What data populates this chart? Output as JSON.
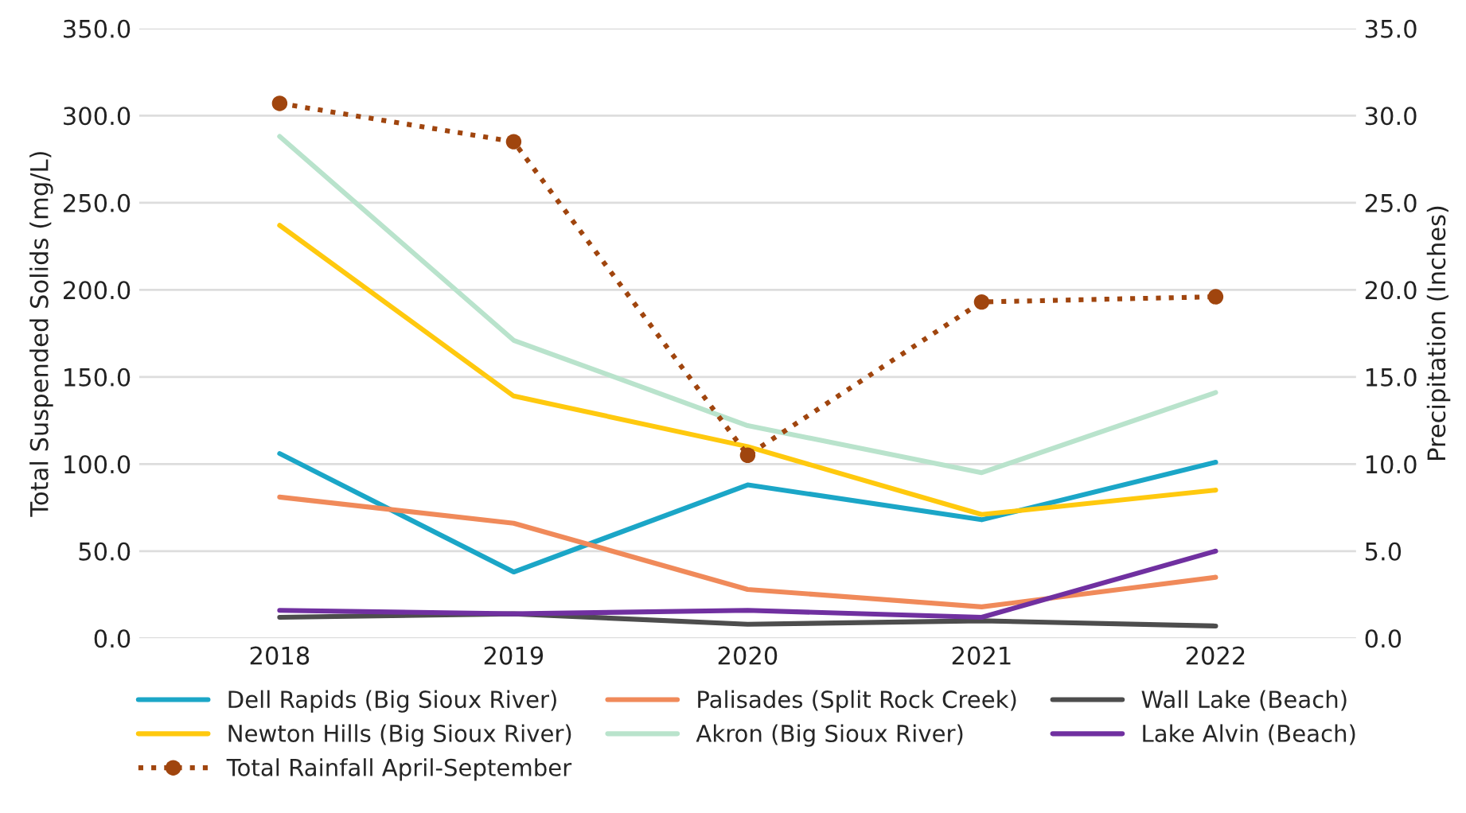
{
  "chart_data": {
    "type": "line",
    "ylabel": "Total Suspended Solids (mg/L)",
    "y2label": "Precipitation (Inches)",
    "categories": [
      "2018",
      "2019",
      "2020",
      "2021",
      "2022"
    ],
    "ylim": [
      0,
      350
    ],
    "yticks": [
      {
        "value": 0,
        "label": "0.0"
      },
      {
        "value": 50,
        "label": "50.0"
      },
      {
        "value": 100,
        "label": "100.0"
      },
      {
        "value": 150,
        "label": "150.0"
      },
      {
        "value": 200,
        "label": "200.0"
      },
      {
        "value": 250,
        "label": "250.0"
      },
      {
        "value": 300,
        "label": "300.0"
      },
      {
        "value": 350,
        "label": "350.0"
      }
    ],
    "y2lim": [
      0,
      35
    ],
    "y2ticks": [
      {
        "value": 0,
        "label": "0.0"
      },
      {
        "value": 5,
        "label": "5.0"
      },
      {
        "value": 10,
        "label": "10.0"
      },
      {
        "value": 15,
        "label": "15.0"
      },
      {
        "value": 20,
        "label": "20.0"
      },
      {
        "value": 25,
        "label": "25.0"
      },
      {
        "value": 30,
        "label": "30.0"
      },
      {
        "value": 35,
        "label": "35.0"
      }
    ],
    "grid": "y",
    "legend": "bottom",
    "series": [
      {
        "name": "Dell Rapids (Big Sioux River)",
        "color": "#1ba6c7",
        "values": [
          106,
          38,
          88,
          68,
          101
        ]
      },
      {
        "name": "Palisades (Split Rock Creek)",
        "color": "#f08a5a",
        "values": [
          81,
          66,
          28,
          18,
          35
        ]
      },
      {
        "name": "Wall Lake (Beach)",
        "color": "#4d4d4d",
        "values": [
          12,
          14,
          8,
          10,
          7
        ]
      },
      {
        "name": "Newton Hills (Big Sioux River)",
        "color": "#ffc90e",
        "values": [
          237,
          139,
          110,
          71,
          85
        ]
      },
      {
        "name": "Akron (Big Sioux River)",
        "color": "#b9e3cc",
        "values": [
          288,
          171,
          122,
          95,
          141
        ]
      },
      {
        "name": "Lake Alvin (Beach)",
        "color": "#7030a0",
        "values": [
          16,
          14,
          16,
          12,
          50
        ]
      },
      {
        "name": "Total Rainfall April-September",
        "color": "#a0450e",
        "axis": "y2",
        "marker": "circle",
        "line_style": "dotted",
        "values": [
          30.7,
          28.5,
          10.5,
          19.3,
          19.6
        ]
      }
    ]
  }
}
